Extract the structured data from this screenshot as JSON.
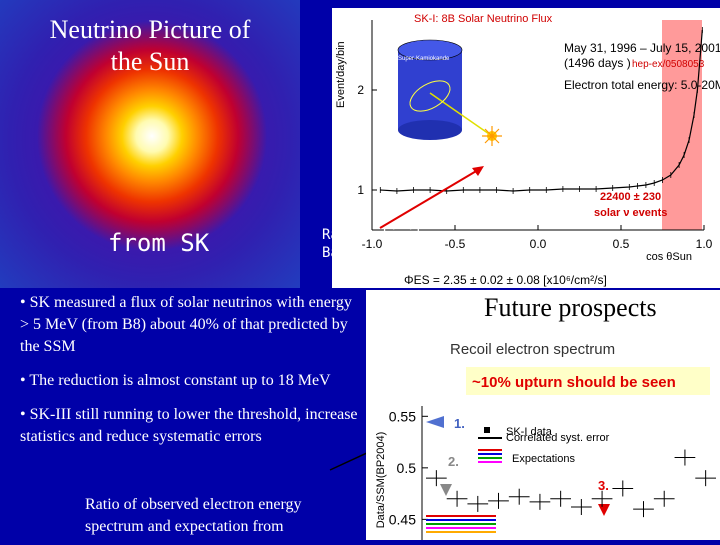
{
  "left_panel": {
    "title_line1": "Neutrino Picture of",
    "title_line2": "the Sun",
    "subtitle": "from SK"
  },
  "annotation": {
    "line1": "Radioactivity",
    "line2": "Background"
  },
  "flux_panel": {
    "title": "SK-I: 8B Solar Neutrino Flux",
    "date_range": "May 31, 1996 – July 15, 2001",
    "days": "(1496 days )",
    "ref": "hep-ex/0508053",
    "energy": "Electron total energy: 5.0-20MeV",
    "events_count": "22400 ± 230",
    "events_label": "solar ν events",
    "detector_label": "Super-Kamiokande",
    "flux_formula": "ΦES = 2.35 ± 0.02 ± 0.08  [x10⁶/cm²/s]"
  },
  "bullets": [
    "• SK measured a flux of solar neutrinos with energy > 5 MeV (from B8) about 40% of that predicted by the SSM",
    "• The reduction is almost constant up to 18 MeV",
    "• SK-III still running to lower the threshold, increase statistics and reduce systematic errors"
  ],
  "ratio_text": "Ratio of observed electron energy spectrum and expectation from",
  "future_panel": {
    "heading": "Future prospects",
    "subheading": "Recoil electron spectrum",
    "banner": "~10% upturn should be seen",
    "legend": [
      "SK-I data",
      "Correlated syst. error",
      "Expectations"
    ],
    "markers": [
      "1.",
      "2.",
      "3."
    ]
  },
  "chart_data": [
    {
      "type": "line",
      "title": "SK-I: 8B Solar Neutrino Flux",
      "xlabel": "cos θSun",
      "ylabel": "Event/day/bin",
      "xlim": [
        -1.0,
        1.0
      ],
      "ylim": [
        0.6,
        2.7
      ],
      "x_ticks": [
        "-1.0",
        "-0.5",
        "0.0",
        "0.5",
        "1.0"
      ],
      "y_ticks": [
        "1",
        "2"
      ],
      "series": [
        {
          "x": [
            -0.95,
            -0.85,
            -0.75,
            -0.65,
            -0.55,
            -0.45,
            -0.35,
            -0.25,
            -0.15,
            -0.05,
            0.05,
            0.15,
            0.25,
            0.35,
            0.45,
            0.55,
            0.6,
            0.65,
            0.7,
            0.75,
            0.8,
            0.85,
            0.88,
            0.91,
            0.94,
            0.96,
            0.98,
            0.99
          ],
          "values": [
            1.0,
            0.99,
            1.0,
            1.0,
            0.99,
            1.0,
            1.0,
            1.0,
            0.99,
            1.0,
            1.0,
            1.01,
            1.01,
            1.01,
            1.02,
            1.03,
            1.04,
            1.05,
            1.07,
            1.1,
            1.15,
            1.25,
            1.35,
            1.5,
            1.75,
            2.0,
            2.4,
            2.6
          ]
        }
      ],
      "grid": false
    },
    {
      "type": "scatter",
      "title": "Recoil electron spectrum",
      "ylabel": "Data/SSM(BP2004)",
      "ylim": [
        0.43,
        0.56
      ],
      "y_ticks": [
        "0.45",
        "0.5",
        "0.55"
      ],
      "series": [
        {
          "name": "SK-I data",
          "values": [
            0.49,
            0.47,
            0.465,
            0.468,
            0.472,
            0.467,
            0.47,
            0.462,
            0.47,
            0.48,
            0.46,
            0.47,
            0.51,
            0.49
          ]
        }
      ]
    }
  ]
}
